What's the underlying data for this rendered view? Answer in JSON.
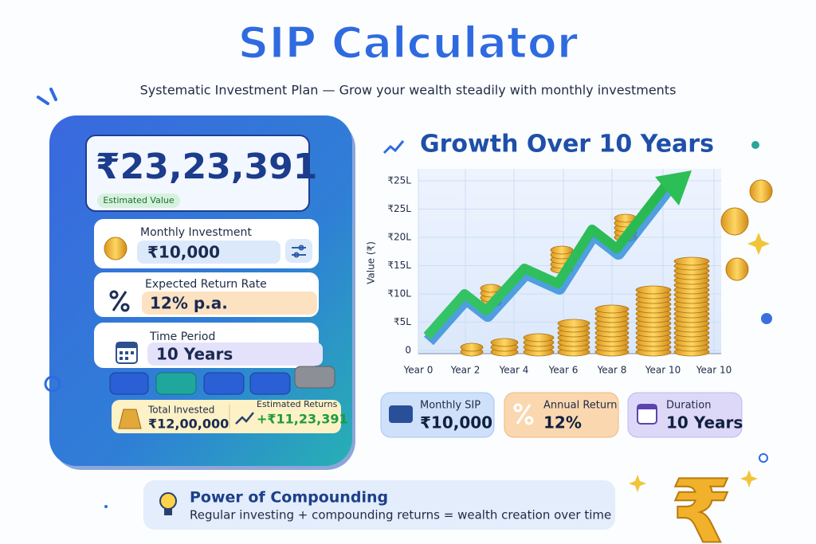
{
  "header": {
    "title": "SIP Calculator",
    "subtitle": "Systematic Investment Plan — Grow your wealth steadily with monthly investments"
  },
  "calculator": {
    "estimated_value": "₹23,23,391",
    "estimated_value_label": "Estimated Value",
    "inputs": [
      {
        "label": "Monthly Investment",
        "value": "₹10,000"
      },
      {
        "label": "Expected Return Rate",
        "value": "12% p.a."
      },
      {
        "label": "Time Period",
        "value": "10 Years"
      }
    ],
    "summary": [
      {
        "label": "Total Invested",
        "value": "₹12,00,000"
      },
      {
        "label": "Estimated Returns",
        "value": "+₹11,23,391"
      }
    ]
  },
  "growth_chart": {
    "title": "Growth Over 10 Years",
    "y_axis_title": "Value (₹)",
    "y_axis_labels": [
      "₹25L",
      "₹25L",
      "₹20L",
      "₹15L",
      "₹10L",
      "₹5L",
      "0"
    ],
    "x_axis_labels": [
      "Year 0",
      "Year 2",
      "Year 4",
      "Year 6",
      "Year 8",
      "Year 10",
      "Year 10"
    ]
  },
  "cards": [
    {
      "label": "Monthly SIP",
      "value": "₹10,000"
    },
    {
      "label": "Annual Return",
      "value": "12%"
    },
    {
      "label": "Duration",
      "value": "10 Years"
    }
  ],
  "footer": {
    "title": "Power of Compounding",
    "text": "Regular investing + compounding returns = wealth creation over time"
  }
}
